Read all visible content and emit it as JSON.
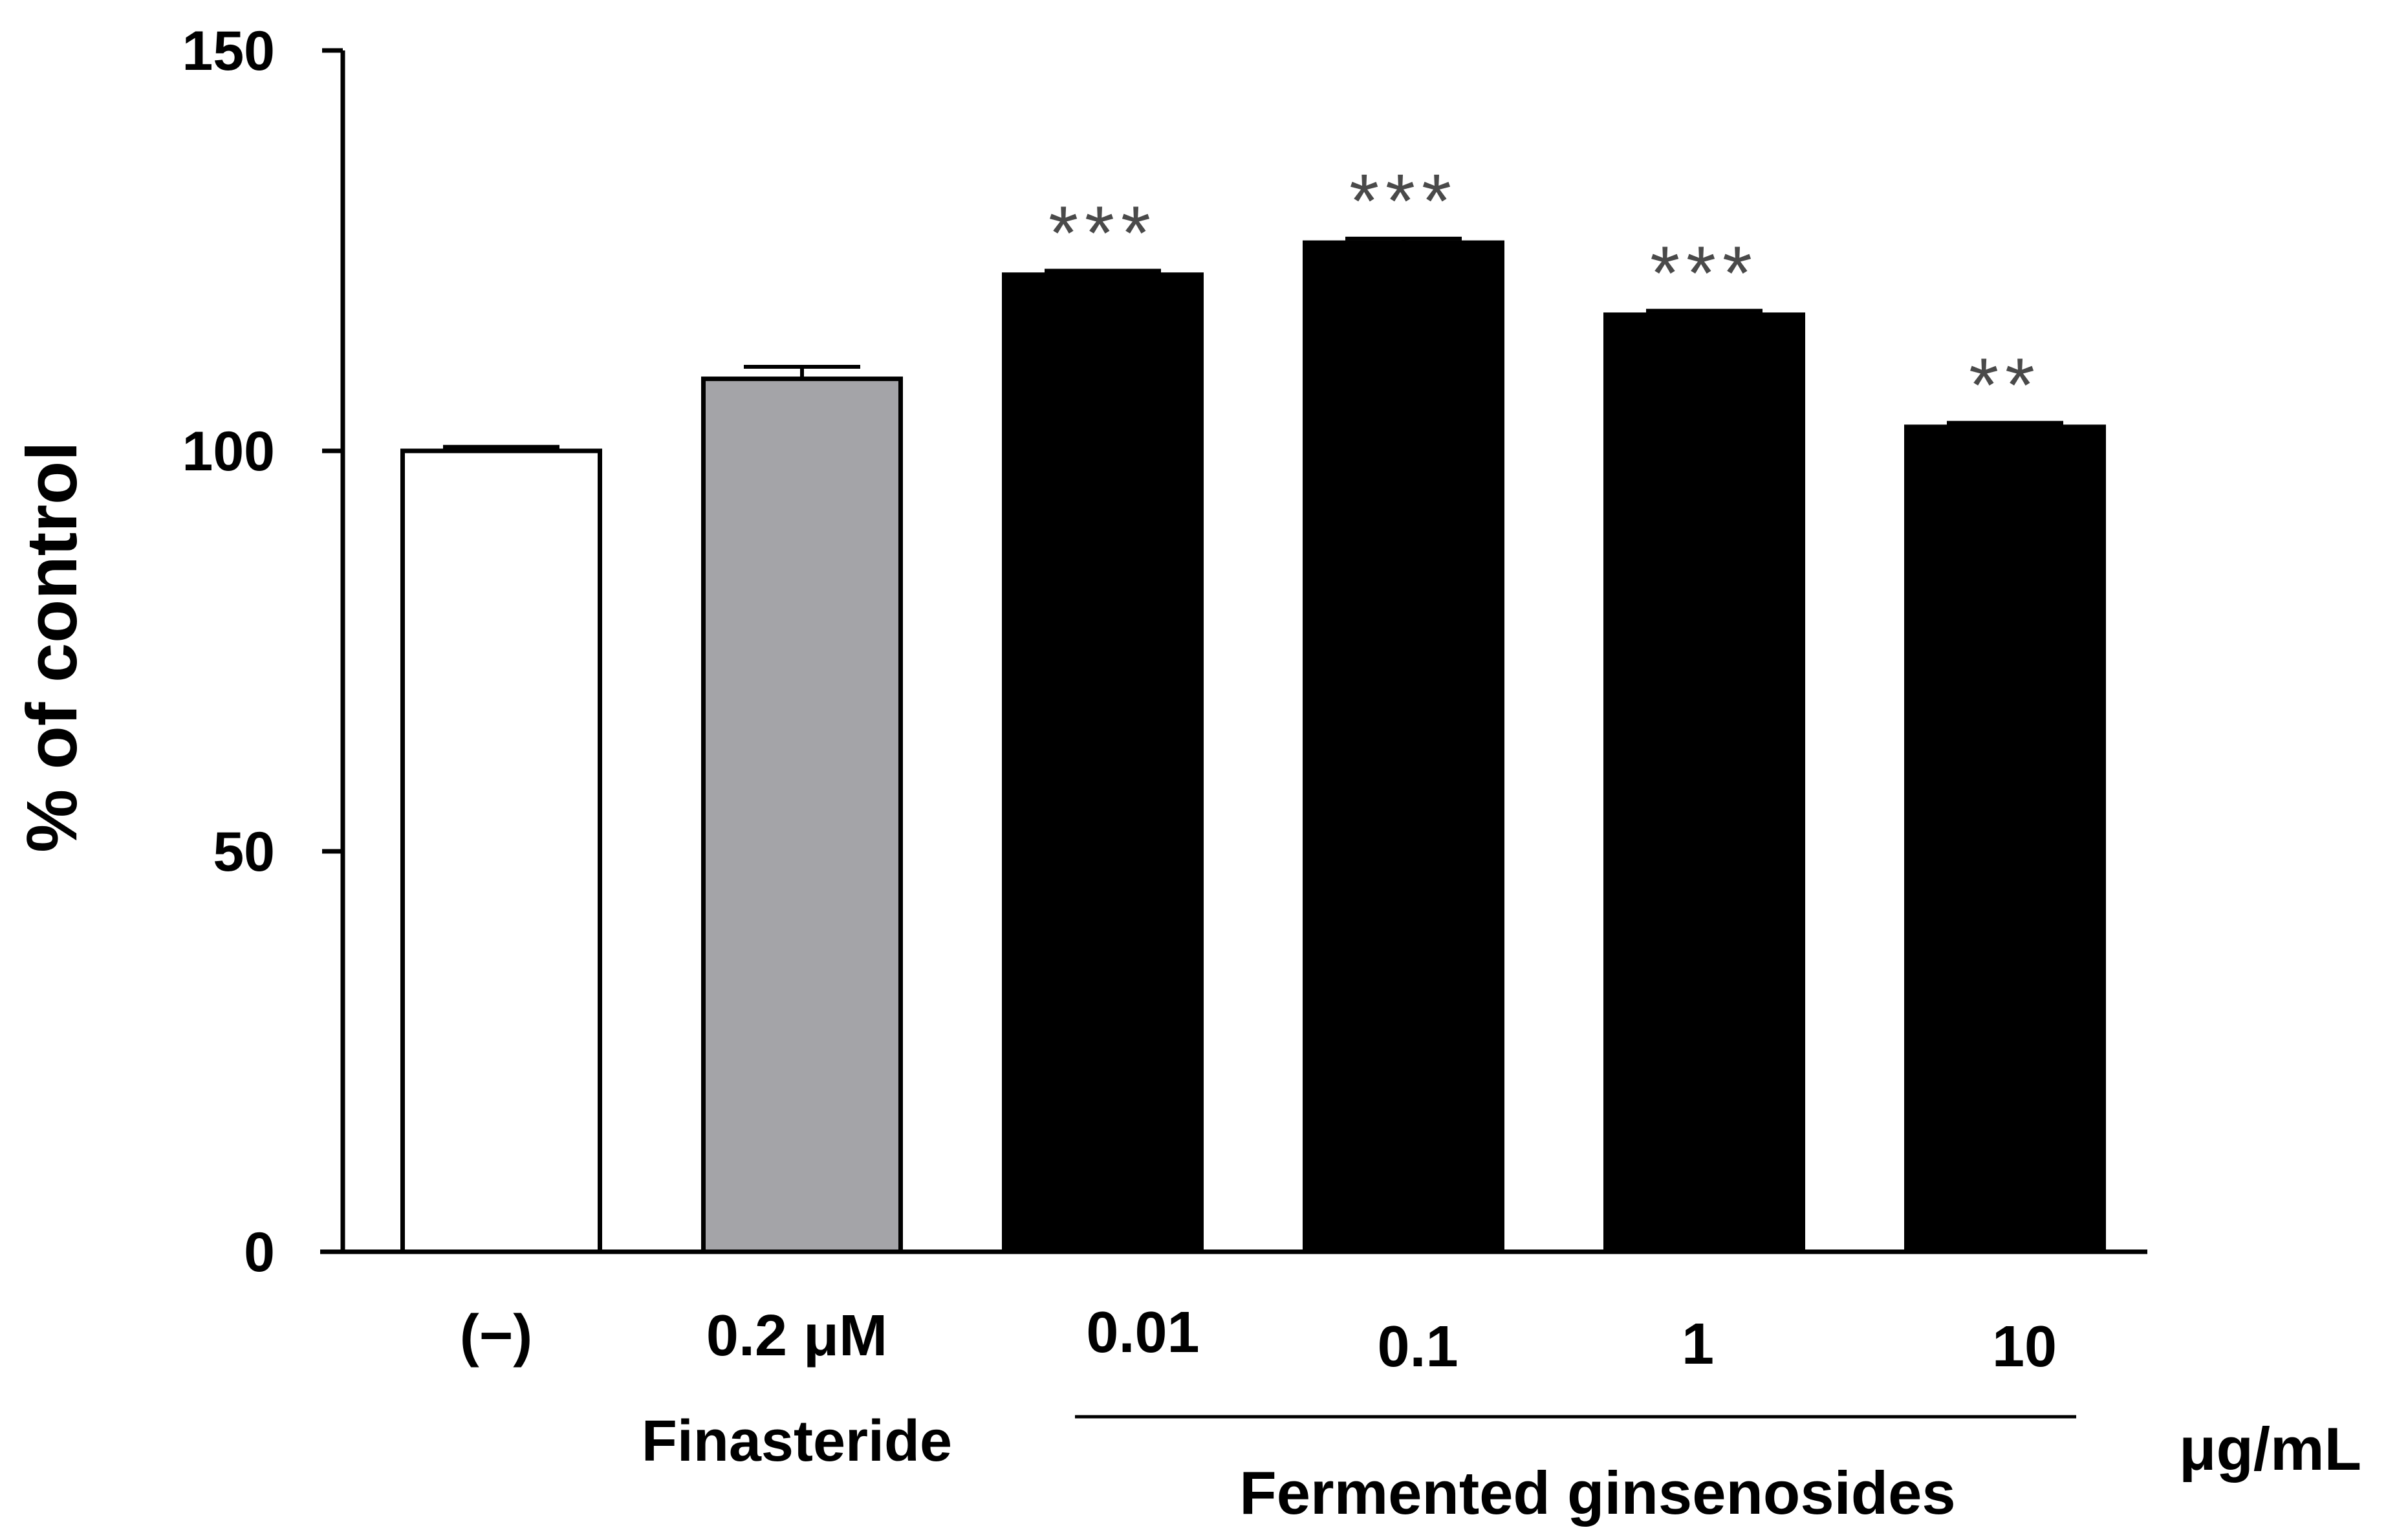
{
  "chart_data": {
    "type": "bar",
    "title": "",
    "xlabel": "",
    "ylabel": "% of control",
    "ylim": [
      0,
      150
    ],
    "yticks": [
      "0",
      "50",
      "100",
      "150"
    ],
    "grid": false,
    "categories": [
      "(−)",
      "0.2 μM",
      "0.01",
      "0.1",
      "1",
      "10"
    ],
    "sublabels": [
      "",
      "Finasteride",
      "",
      "",
      "",
      ""
    ],
    "values": [
      100,
      109,
      122,
      126,
      117,
      103
    ],
    "errors": [
      0.5,
      1.5,
      0.5,
      0.5,
      0.5,
      0.5
    ],
    "significance": [
      "",
      "",
      "***",
      "***",
      "***",
      "**"
    ],
    "bar_colors": [
      "#ffffff",
      "#a4a4a8",
      "#000000",
      "#000000",
      "#000000",
      "#000000"
    ],
    "group_label": "Fermented ginsenosides",
    "unit_label": "μg/mL"
  }
}
